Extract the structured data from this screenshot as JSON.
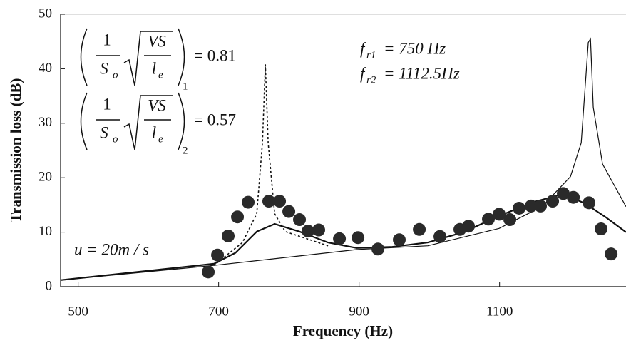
{
  "chart_data": {
    "type": "line",
    "x_label": "Frequency (Hz)",
    "y_label": "Transmission loss (dB)",
    "xlim": [
      475,
      1280
    ],
    "ylim": [
      0,
      50
    ],
    "xticks": [
      500,
      700,
      900,
      1100
    ],
    "yticks": [
      0,
      10,
      20,
      30,
      40,
      50
    ],
    "series": [
      {
        "type": "line",
        "style": "solid",
        "width": 2.2,
        "color": "#111",
        "x": [
          475,
          693.4,
          723.9,
          754.3,
          779.7,
          815.2,
          855.8,
          896.4,
          947.2,
          997.9,
          1048.7,
          1099.4,
          1150.2,
          1190.8,
          1221.3,
          1251.7,
          1280
        ],
        "values": [
          1.2,
          4.2,
          6.2,
          10.1,
          11.5,
          10.1,
          8.1,
          7.1,
          7.3,
          8.1,
          10.0,
          13.0,
          15.6,
          17.0,
          15.3,
          12.7,
          10.0
        ]
      },
      {
        "type": "line",
        "style": "dotted",
        "width": 1.6,
        "color": "#111",
        "x": [
          693.4,
          734.0,
          754.3,
          762.4,
          766.5,
          770.5,
          779.7,
          794.9,
          855.8
        ],
        "values": [
          3.9,
          8.1,
          13.4,
          26.4,
          40.8,
          26.4,
          13.4,
          10.1,
          7.5
        ]
      },
      {
        "type": "line",
        "style": "solid",
        "width": 1.2,
        "color": "#111",
        "x": [
          475,
          693.4,
          896.4,
          997.9,
          1099.4,
          1160.3,
          1200.9,
          1216.2,
          1226.3,
          1229.4,
          1233.4,
          1246.6,
          1280
        ],
        "values": [
          1.2,
          3.9,
          6.8,
          7.5,
          10.7,
          14.7,
          20.2,
          26.4,
          44.8,
          45.5,
          32.9,
          22.5,
          14.7
        ]
      },
      {
        "type": "scatter",
        "color": "#2a2a2a",
        "x": [
          685.2,
          698.4,
          713.6,
          726.8,
          742.0,
          771.4,
          786.7,
          799.9,
          815.1,
          827.3,
          842.5,
          872.0,
          898.4,
          926.8,
          957.2,
          985.7,
          1015.1,
          1043.5,
          1055.7,
          1084.1,
          1099.4,
          1114.6,
          1127.8,
          1144.8,
          1158.2,
          1175.5,
          1190.7,
          1205.0,
          1227.3,
          1244.5,
          1258.8
        ],
        "values": [
          2.7,
          5.8,
          9.3,
          12.8,
          15.5,
          15.7,
          15.7,
          13.8,
          12.3,
          10.2,
          10.4,
          8.8,
          9.0,
          6.9,
          8.6,
          10.5,
          9.2,
          10.5,
          11.1,
          12.4,
          13.3,
          12.3,
          14.4,
          14.8,
          14.8,
          15.7,
          17.1,
          16.4,
          15.4,
          10.6,
          6.0
        ]
      }
    ],
    "annotations": {
      "formulas": [
        {
          "numerator": "1",
          "denominator": "S",
          "denominator_sub": "o",
          "root_numerator": "VS",
          "root_denominator": "l",
          "root_denominator_sub": "e",
          "subscript": "1",
          "value": "= 0.81"
        },
        {
          "numerator": "1",
          "denominator": "S",
          "denominator_sub": "o",
          "root_numerator": "VS",
          "root_denominator": "l",
          "root_denominator_sub": "e",
          "subscript": "2",
          "value": "= 0.57"
        }
      ],
      "resonances": [
        {
          "symbol": "f",
          "sub": "r1",
          "value": "= 750 Hz"
        },
        {
          "symbol": "f",
          "sub": "r2",
          "value": "= 1112.5Hz"
        }
      ],
      "velocity": "u = 20m / s"
    }
  }
}
